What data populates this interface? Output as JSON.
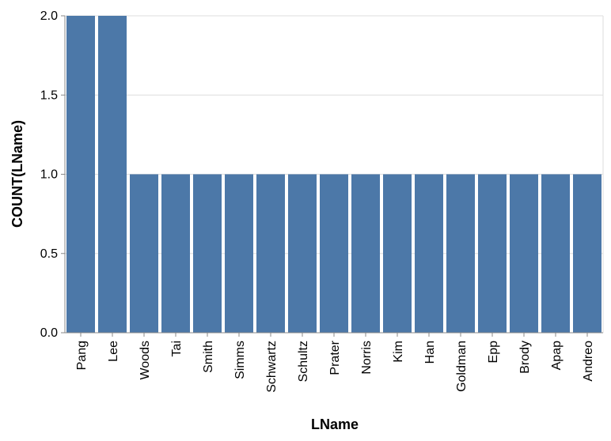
{
  "chart_data": {
    "type": "bar",
    "xlabel": "LName",
    "ylabel": "COUNT(LName)",
    "categories": [
      "Pang",
      "Lee",
      "Woods",
      "Tai",
      "Smith",
      "Simms",
      "Schwartz",
      "Schultz",
      "Prater",
      "Norris",
      "Kim",
      "Han",
      "Goldman",
      "Epp",
      "Brody",
      "Apap",
      "Andreo"
    ],
    "values": [
      2,
      2,
      1,
      1,
      1,
      1,
      1,
      1,
      1,
      1,
      1,
      1,
      1,
      1,
      1,
      1,
      1
    ],
    "ylim": [
      0,
      2
    ],
    "yticks": [
      "0.0",
      "0.5",
      "1.0",
      "1.5",
      "2.0"
    ],
    "grid": true,
    "colors": {
      "bar": "#4c78a8",
      "grid": "#dddddd",
      "axis": "#888888"
    }
  }
}
